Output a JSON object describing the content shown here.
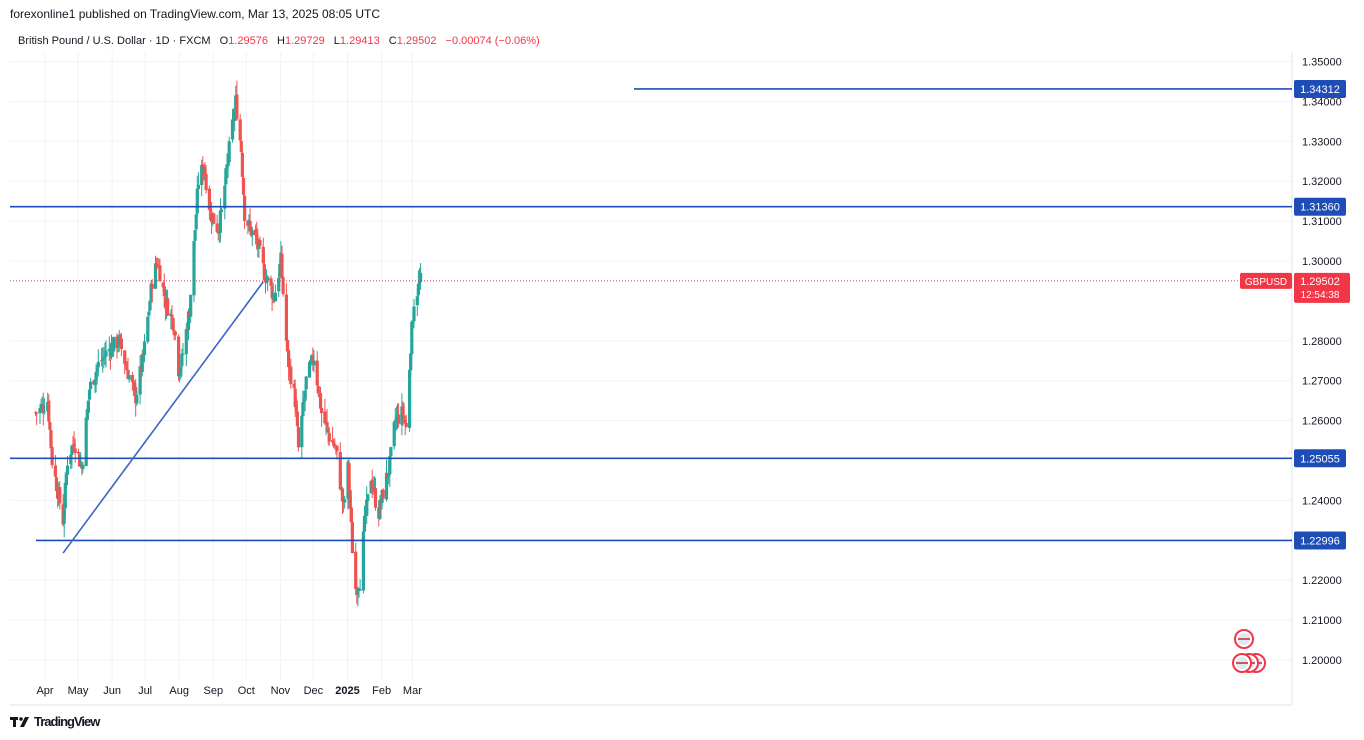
{
  "header": {
    "published": "forexonline1 published on TradingView.com, Mar 13, 2025 08:05 UTC"
  },
  "legend": {
    "symbol": "British Pound / U.S. Dollar · 1D · FXCM",
    "o_label": "O",
    "o_value": "1.29576",
    "h_label": "H",
    "h_value": "1.29729",
    "l_label": "L",
    "l_value": "1.29413",
    "c_label": "C",
    "c_value": "1.29502",
    "change": "−0.00074 (−0.06%)"
  },
  "footer": {
    "brand": "TradingView"
  },
  "colors": {
    "up": "#26a69a",
    "down": "#ef5350",
    "level_line": "#1e4db7",
    "trend_line": "#3a66c4",
    "grid": "#f0f3fa",
    "tag_blue": "#1e4db7",
    "tag_red": "#f23645"
  },
  "chart_data": {
    "type": "candlestick",
    "symbol": "GBPUSD",
    "ylim": [
      1.195,
      1.352
    ],
    "y_ticks": [
      "1.35000",
      "1.34000",
      "1.33000",
      "1.32000",
      "1.31000",
      "1.30000",
      "1.28000",
      "1.27000",
      "1.26000",
      "1.24000",
      "1.22000",
      "1.21000",
      "1.20000"
    ],
    "x_ticks": [
      "Apr",
      "May",
      "Jun",
      "Jul",
      "Aug",
      "Sep",
      "Oct",
      "Nov",
      "Dec",
      "2025",
      "Feb",
      "Mar"
    ],
    "horizontal_levels": [
      "1.34312",
      "1.31360",
      "1.25055",
      "1.22996"
    ],
    "current_price": "1.29502",
    "countdown": "12:54:38",
    "symbol_tag": "GBPUSD",
    "trendline": {
      "start": [
        "2024-04-22",
        1.2268
      ],
      "end": [
        "2024-10-21",
        1.2948
      ]
    },
    "price_path": [
      [
        "2024-03-28",
        1.262
      ],
      [
        "2024-04-02",
        1.263
      ],
      [
        "2024-04-08",
        1.265
      ],
      [
        "2024-04-12",
        1.25
      ],
      [
        "2024-04-16",
        1.244
      ],
      [
        "2024-04-22",
        1.235
      ],
      [
        "2024-04-26",
        1.25
      ],
      [
        "2024-05-02",
        1.255
      ],
      [
        "2024-05-09",
        1.248
      ],
      [
        "2024-05-16",
        1.268
      ],
      [
        "2024-05-24",
        1.274
      ],
      [
        "2024-06-03",
        1.278
      ],
      [
        "2024-06-12",
        1.28
      ],
      [
        "2024-06-19",
        1.273
      ],
      [
        "2024-06-27",
        1.266
      ],
      [
        "2024-07-04",
        1.276
      ],
      [
        "2024-07-12",
        1.295
      ],
      [
        "2024-07-17",
        1.3
      ],
      [
        "2024-07-24",
        1.29
      ],
      [
        "2024-08-01",
        1.284
      ],
      [
        "2024-08-05",
        1.273
      ],
      [
        "2024-08-08",
        1.275
      ],
      [
        "2024-08-15",
        1.288
      ],
      [
        "2024-08-23",
        1.32
      ],
      [
        "2024-08-28",
        1.324
      ],
      [
        "2024-09-03",
        1.312
      ],
      [
        "2024-09-10",
        1.308
      ],
      [
        "2024-09-13",
        1.312
      ],
      [
        "2024-09-20",
        1.328
      ],
      [
        "2024-09-26",
        1.34
      ],
      [
        "2024-10-01",
        1.328
      ],
      [
        "2024-10-04",
        1.312
      ],
      [
        "2024-10-09",
        1.308
      ],
      [
        "2024-10-15",
        1.305
      ],
      [
        "2024-10-22",
        1.297
      ],
      [
        "2024-10-31",
        1.291
      ],
      [
        "2024-11-06",
        1.3
      ],
      [
        "2024-11-12",
        1.276
      ],
      [
        "2024-11-19",
        1.265
      ],
      [
        "2024-11-22",
        1.253
      ],
      [
        "2024-11-29",
        1.27
      ],
      [
        "2024-12-06",
        1.276
      ],
      [
        "2024-12-13",
        1.262
      ],
      [
        "2024-12-20",
        1.256
      ],
      [
        "2024-12-26",
        1.253
      ],
      [
        "2025-01-02",
        1.238
      ],
      [
        "2025-01-06",
        1.248
      ],
      [
        "2025-01-10",
        1.228
      ],
      [
        "2025-01-13",
        1.218
      ],
      [
        "2025-01-17",
        1.22
      ],
      [
        "2025-01-21",
        1.234
      ],
      [
        "2025-01-27",
        1.246
      ],
      [
        "2025-01-31",
        1.24
      ],
      [
        "2025-02-03",
        1.237
      ],
      [
        "2025-02-07",
        1.242
      ],
      [
        "2025-02-13",
        1.249
      ],
      [
        "2025-02-18",
        1.26
      ],
      [
        "2025-02-25",
        1.262
      ],
      [
        "2025-02-28",
        1.258
      ],
      [
        "2025-03-04",
        1.279
      ],
      [
        "2025-03-07",
        1.29
      ],
      [
        "2025-03-13",
        1.295
      ]
    ]
  }
}
